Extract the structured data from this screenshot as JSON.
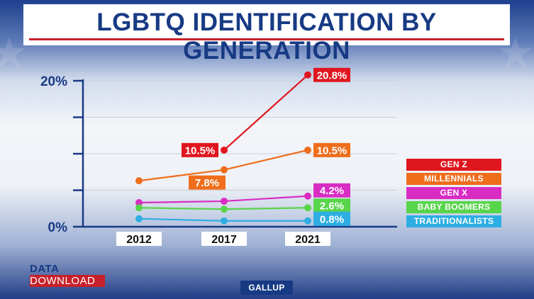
{
  "title": "LGBTQ IDENTIFICATION BY GENERATION",
  "brand": {
    "data_label": "DATA",
    "download_label": "DOWNLOAD"
  },
  "source": "GALLUP",
  "chart_data": {
    "type": "line",
    "title": "LGBTQ IDENTIFICATION BY GENERATION",
    "xlabel": "",
    "ylabel": "",
    "categories": [
      "2012",
      "2017",
      "2021"
    ],
    "ylim": [
      0,
      20
    ],
    "yticks": [
      0,
      5,
      10,
      15,
      20
    ],
    "ytick_labels": [
      "0%",
      "",
      "",
      "",
      "20%"
    ],
    "grid": true,
    "legend_position": "right",
    "series": [
      {
        "name": "GEN Z",
        "color": "#e0161f",
        "values": [
          null,
          10.5,
          20.8
        ],
        "labels": [
          null,
          "10.5%",
          "20.8%"
        ]
      },
      {
        "name": "MILLENNIALS",
        "color": "#ef6d1b",
        "values": [
          6.3,
          7.8,
          10.5
        ],
        "labels": [
          null,
          "7.8%",
          "10.5%"
        ]
      },
      {
        "name": "GEN X",
        "color": "#d92cc3",
        "values": [
          3.3,
          3.5,
          4.2
        ],
        "labels": [
          null,
          null,
          "4.2%"
        ]
      },
      {
        "name": "BABY BOOMERS",
        "color": "#58d54a",
        "values": [
          2.6,
          2.4,
          2.6
        ],
        "labels": [
          null,
          null,
          "2.6%"
        ]
      },
      {
        "name": "TRADITIONALISTS",
        "color": "#2eaee3",
        "values": [
          1.1,
          0.8,
          0.8
        ],
        "labels": [
          null,
          null,
          "0.8%"
        ]
      }
    ]
  }
}
